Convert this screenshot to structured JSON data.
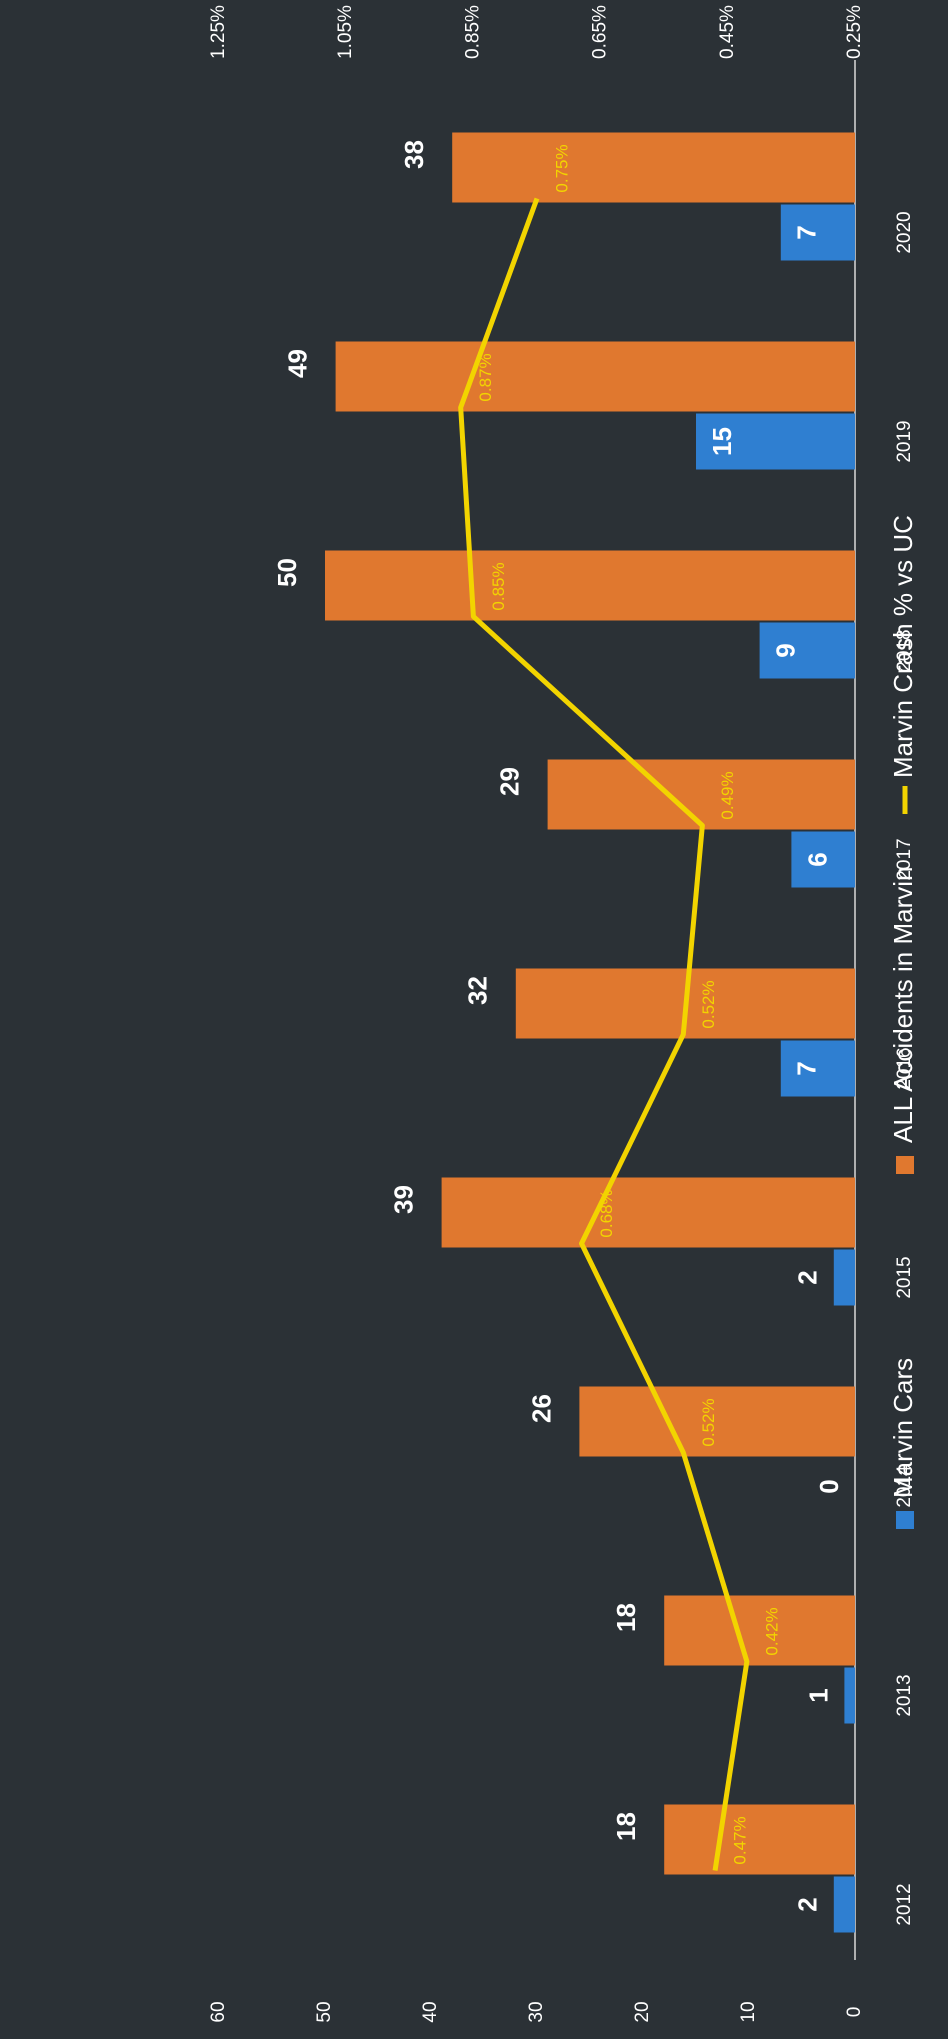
{
  "chart_data": {
    "type": "bar",
    "orientation": "rotated-90-clockwise",
    "categories": [
      "2012",
      "2013",
      "2014",
      "2015",
      "2016",
      "2017",
      "2018",
      "2019",
      "2020"
    ],
    "series": [
      {
        "name": "Marvin  Cars",
        "type": "bar",
        "axis": "primary",
        "color": "#2f7fd1",
        "values": [
          2,
          1,
          0,
          2,
          7,
          6,
          9,
          15,
          7
        ],
        "labels": [
          "2",
          "1",
          "0",
          "2",
          "7",
          "6",
          "9",
          "15",
          "7"
        ]
      },
      {
        "name": "ALL Accidents in Marvin",
        "type": "bar",
        "axis": "primary",
        "color": "#e0782f",
        "values": [
          18,
          18,
          26,
          39,
          32,
          29,
          50,
          49,
          38
        ],
        "labels": [
          "18",
          "18",
          "26",
          "39",
          "32",
          "29",
          "50",
          "49",
          "38"
        ]
      },
      {
        "name": "Marvin Crash % vs UC",
        "type": "line",
        "axis": "secondary",
        "color": "#f2d400",
        "values": [
          0.47,
          0.42,
          0.52,
          0.68,
          0.52,
          0.49,
          0.85,
          0.87,
          0.75
        ],
        "labels": [
          "0.47%",
          "0.42%",
          "0.52%",
          "0.68%",
          "0.52%",
          "0.49%",
          "0.85%",
          "0.87%",
          "0.75%"
        ]
      }
    ],
    "primary_axis": {
      "range": [
        0,
        60
      ],
      "ticks": [
        0,
        10,
        20,
        30,
        40,
        50,
        60
      ],
      "tick_labels": [
        "0",
        "10",
        "20",
        "30",
        "40",
        "50",
        "60"
      ]
    },
    "secondary_axis": {
      "range": [
        0.25,
        1.25
      ],
      "ticks": [
        0.25,
        0.45,
        0.65,
        0.85,
        1.05,
        1.25
      ],
      "tick_labels": [
        "0.25%",
        "0.45%",
        "0.65%",
        "0.85%",
        "1.05%",
        "1.25%"
      ]
    },
    "title": "",
    "xlabel": "",
    "ylabel": "",
    "grid": false,
    "legend": "bottom",
    "colors": {
      "background": "#2b3136",
      "axis_text": "#ffffff",
      "label_text": "#ffffff"
    }
  }
}
